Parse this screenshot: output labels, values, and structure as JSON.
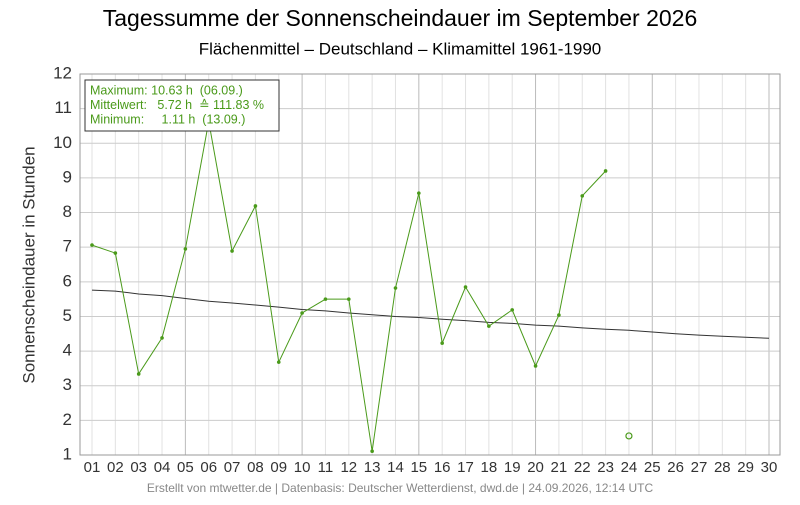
{
  "chart_data": {
    "type": "line",
    "title": "Tagessumme der Sonnenscheindauer im September 2026",
    "subtitle": "Flächenmittel – Deutschland – Klimamittel 1961-1990",
    "y_label": "Sonnenscheindauer in Stunden",
    "footer": "Erstellt von mtwetter.de | Datenbasis: Deutscher Wetterdienst, dwd.de | 24.09.2026, 12:14 UTC",
    "annotations": [
      "Maximum: 10.63 h  (06.09.)",
      "Mittelwert:   5.72 h  ≙ 111.83 %",
      "Minimum:     1.11 h  (13.09.)"
    ],
    "categories": [
      "01",
      "02",
      "03",
      "04",
      "05",
      "06",
      "07",
      "08",
      "09",
      "10",
      "11",
      "12",
      "13",
      "14",
      "15",
      "16",
      "17",
      "18",
      "19",
      "20",
      "21",
      "22",
      "23",
      "24",
      "25",
      "26",
      "27",
      "28",
      "29",
      "30"
    ],
    "ylim": [
      1,
      12
    ],
    "yticks": [
      1,
      2,
      3,
      4,
      5,
      6,
      7,
      8,
      9,
      10,
      11,
      12
    ],
    "grid": true,
    "series": [
      {
        "color": "#333333",
        "marker": "none",
        "values": [
          5.76,
          5.73,
          5.65,
          5.6,
          5.52,
          5.44,
          5.39,
          5.33,
          5.27,
          5.2,
          5.16,
          5.1,
          5.05,
          5.0,
          4.97,
          4.92,
          4.88,
          4.83,
          4.8,
          4.75,
          4.72,
          4.67,
          4.63,
          4.6,
          4.55,
          4.5,
          4.46,
          4.43,
          4.4,
          4.37
        ]
      },
      {
        "color": "#4a9a1a",
        "marker": "dot",
        "values": [
          7.06,
          6.83,
          3.34,
          4.38,
          6.95,
          10.63,
          6.89,
          8.19,
          3.68,
          5.1,
          5.5,
          5.5,
          1.11,
          5.82,
          8.56,
          4.23,
          5.85,
          4.72,
          5.19,
          3.57,
          5.04,
          8.48,
          9.2,
          null,
          null,
          null,
          null,
          null,
          null,
          null
        ]
      },
      {
        "color": "#4a9a1a",
        "marker": "open-circle",
        "values": [
          null,
          null,
          null,
          null,
          null,
          null,
          null,
          null,
          null,
          null,
          null,
          null,
          null,
          null,
          null,
          null,
          null,
          null,
          null,
          null,
          null,
          null,
          null,
          1.55,
          null,
          null,
          null,
          null,
          null,
          null
        ]
      }
    ]
  }
}
